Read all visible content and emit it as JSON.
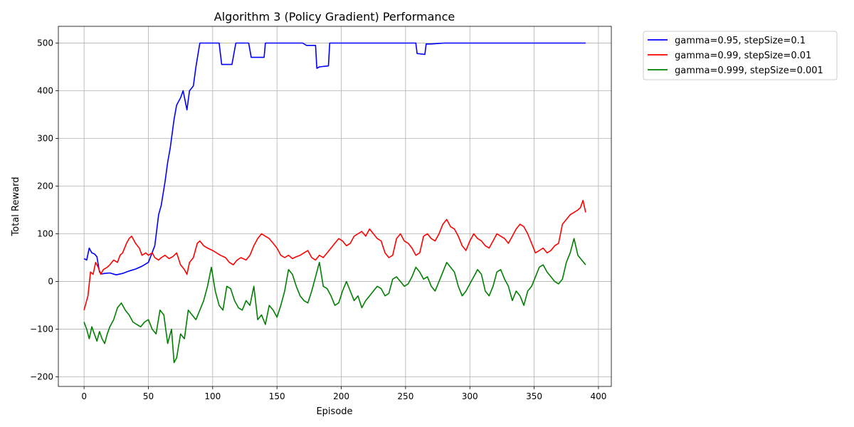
{
  "chart_data": {
    "type": "line",
    "title": "Algorithm 3 (Policy Gradient) Performance",
    "xlabel": "Episode",
    "ylabel": "Total Reward",
    "xlim": [
      -20,
      410
    ],
    "ylim": [
      -220,
      535
    ],
    "xticks": [
      0,
      50,
      100,
      150,
      200,
      250,
      300,
      350,
      400
    ],
    "yticks": [
      -200,
      -100,
      0,
      100,
      200,
      300,
      400,
      500
    ],
    "grid": true,
    "legend_position": "outside-top-right",
    "series": [
      {
        "name": "gamma=0.95, stepSize=0.1",
        "color": "#0000ff",
        "x": [
          0,
          2,
          4,
          6,
          8,
          10,
          12,
          14,
          16,
          20,
          25,
          30,
          35,
          40,
          45,
          50,
          55,
          58,
          60,
          63,
          65,
          67,
          70,
          72,
          75,
          77,
          80,
          82,
          85,
          87,
          90,
          95,
          100,
          105,
          107,
          115,
          118,
          128,
          130,
          140,
          141,
          150,
          160,
          170,
          173,
          180,
          181,
          183,
          190,
          191,
          200,
          210,
          220,
          230,
          240,
          250,
          258,
          259,
          265,
          266,
          270,
          280,
          290,
          300,
          310,
          320,
          330,
          340,
          350,
          360,
          370,
          380,
          390
        ],
        "y": [
          48,
          45,
          70,
          60,
          58,
          52,
          20,
          16,
          17,
          18,
          14,
          17,
          22,
          26,
          32,
          40,
          75,
          140,
          160,
          210,
          250,
          280,
          340,
          370,
          385,
          400,
          360,
          400,
          410,
          450,
          500,
          500,
          500,
          500,
          455,
          455,
          500,
          500,
          470,
          470,
          500,
          500,
          500,
          500,
          495,
          495,
          447,
          450,
          452,
          500,
          500,
          500,
          500,
          500,
          500,
          500,
          500,
          478,
          476,
          498,
          498,
          500,
          500,
          500,
          500,
          500,
          500,
          500,
          500,
          500,
          500,
          500,
          500
        ]
      },
      {
        "name": "gamma=0.99, stepSize=0.01",
        "color": "#ff0000",
        "x": [
          0,
          3,
          5,
          7,
          9,
          11,
          13,
          15,
          18,
          20,
          23,
          26,
          28,
          30,
          33,
          35,
          37,
          40,
          43,
          45,
          48,
          50,
          53,
          55,
          58,
          60,
          63,
          66,
          69,
          72,
          75,
          78,
          80,
          82,
          85,
          88,
          90,
          93,
          96,
          100,
          103,
          106,
          110,
          113,
          116,
          119,
          122,
          126,
          129,
          132,
          135,
          138,
          141,
          144,
          147,
          150,
          153,
          156,
          159,
          162,
          165,
          168,
          171,
          174,
          177,
          180,
          183,
          186,
          189,
          192,
          195,
          198,
          201,
          204,
          207,
          210,
          213,
          216,
          219,
          222,
          225,
          228,
          231,
          234,
          237,
          240,
          243,
          246,
          249,
          252,
          255,
          258,
          261,
          264,
          267,
          270,
          273,
          276,
          279,
          282,
          285,
          288,
          291,
          294,
          297,
          300,
          303,
          306,
          309,
          312,
          315,
          318,
          321,
          324,
          327,
          330,
          333,
          336,
          339,
          342,
          345,
          348,
          351,
          354,
          357,
          360,
          363,
          366,
          369,
          372,
          375,
          378,
          381,
          384,
          386,
          388,
          390
        ],
        "y": [
          -60,
          -30,
          20,
          15,
          40,
          30,
          15,
          25,
          30,
          35,
          45,
          40,
          55,
          60,
          80,
          90,
          95,
          80,
          70,
          55,
          60,
          55,
          60,
          50,
          45,
          50,
          55,
          48,
          52,
          60,
          35,
          25,
          15,
          40,
          50,
          80,
          85,
          75,
          70,
          65,
          60,
          55,
          50,
          40,
          35,
          45,
          50,
          45,
          55,
          75,
          90,
          100,
          95,
          90,
          80,
          70,
          55,
          50,
          55,
          48,
          52,
          55,
          60,
          65,
          50,
          45,
          55,
          50,
          60,
          70,
          80,
          90,
          85,
          75,
          80,
          95,
          100,
          105,
          95,
          110,
          100,
          90,
          85,
          60,
          50,
          55,
          90,
          100,
          85,
          80,
          70,
          55,
          60,
          95,
          100,
          90,
          85,
          100,
          120,
          130,
          115,
          110,
          95,
          75,
          65,
          85,
          100,
          90,
          85,
          75,
          70,
          85,
          100,
          95,
          90,
          80,
          95,
          110,
          120,
          115,
          100,
          80,
          60,
          65,
          70,
          60,
          65,
          75,
          80,
          120,
          130,
          140,
          145,
          150,
          155,
          170,
          145
        ]
      },
      {
        "name": "gamma=0.999, stepSize=0.001",
        "color": "#008000",
        "x": [
          0,
          2,
          4,
          6,
          8,
          10,
          12,
          14,
          16,
          18,
          20,
          23,
          26,
          29,
          32,
          35,
          38,
          41,
          44,
          47,
          50,
          53,
          56,
          59,
          62,
          65,
          68,
          70,
          72,
          75,
          78,
          81,
          84,
          87,
          90,
          93,
          96,
          99,
          102,
          105,
          108,
          111,
          114,
          117,
          120,
          123,
          126,
          129,
          132,
          135,
          138,
          141,
          144,
          147,
          150,
          153,
          156,
          159,
          162,
          165,
          168,
          171,
          174,
          177,
          180,
          183,
          186,
          189,
          192,
          195,
          198,
          201,
          204,
          207,
          210,
          213,
          216,
          219,
          222,
          225,
          228,
          231,
          234,
          237,
          240,
          243,
          246,
          249,
          252,
          255,
          258,
          261,
          264,
          267,
          270,
          273,
          276,
          279,
          282,
          285,
          288,
          291,
          294,
          297,
          300,
          303,
          306,
          309,
          312,
          315,
          318,
          321,
          324,
          327,
          330,
          333,
          336,
          339,
          342,
          345,
          348,
          351,
          354,
          357,
          360,
          363,
          366,
          369,
          372,
          375,
          378,
          381,
          384,
          387,
          390
        ],
        "y": [
          -85,
          -100,
          -120,
          -95,
          -110,
          -125,
          -105,
          -120,
          -130,
          -110,
          -95,
          -80,
          -55,
          -45,
          -60,
          -70,
          -85,
          -90,
          -95,
          -85,
          -80,
          -100,
          -110,
          -60,
          -70,
          -130,
          -100,
          -170,
          -160,
          -110,
          -120,
          -60,
          -70,
          -80,
          -60,
          -40,
          -10,
          30,
          -20,
          -50,
          -60,
          -10,
          -15,
          -40,
          -55,
          -60,
          -40,
          -50,
          -10,
          -80,
          -70,
          -90,
          -50,
          -60,
          -75,
          -50,
          -20,
          25,
          15,
          -10,
          -30,
          -40,
          -45,
          -20,
          10,
          40,
          -10,
          -15,
          -30,
          -50,
          -45,
          -20,
          0,
          -20,
          -40,
          -30,
          -55,
          -40,
          -30,
          -20,
          -10,
          -15,
          -30,
          -25,
          5,
          10,
          0,
          -10,
          -5,
          10,
          30,
          20,
          5,
          10,
          -10,
          -20,
          0,
          20,
          40,
          30,
          20,
          -10,
          -30,
          -20,
          -5,
          10,
          25,
          15,
          -20,
          -30,
          -10,
          20,
          25,
          5,
          -10,
          -40,
          -20,
          -30,
          -50,
          -20,
          -10,
          10,
          30,
          35,
          20,
          10,
          0,
          -5,
          5,
          40,
          60,
          90,
          55,
          45,
          35
        ]
      }
    ]
  }
}
